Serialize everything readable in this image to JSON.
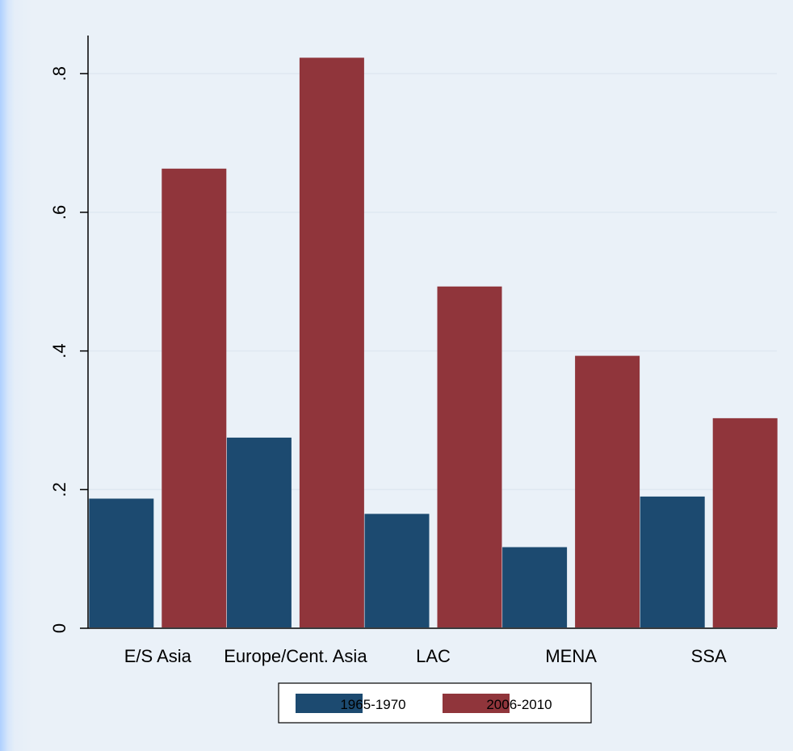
{
  "chart_data": {
    "type": "bar",
    "categories": [
      "E/S Asia",
      "Europe/Cent. Asia",
      "LAC",
      "MENA",
      "SSA"
    ],
    "series": [
      {
        "name": "1965-1970",
        "color": "#1c4a70",
        "values": [
          0.187,
          0.275,
          0.165,
          0.117,
          0.19
        ]
      },
      {
        "name": "2006-2010",
        "color": "#90353b",
        "values": [
          0.663,
          0.823,
          0.493,
          0.393,
          0.303
        ]
      }
    ],
    "yticks": [
      {
        "value": 0,
        "label": "0"
      },
      {
        "value": 0.2,
        "label": ".2"
      },
      {
        "value": 0.4,
        "label": ".4"
      },
      {
        "value": 0.6,
        "label": ".6"
      },
      {
        "value": 0.8,
        "label": ".8"
      }
    ],
    "ylim": [
      0,
      0.855
    ],
    "grid": true,
    "legend_position": "bottom"
  }
}
